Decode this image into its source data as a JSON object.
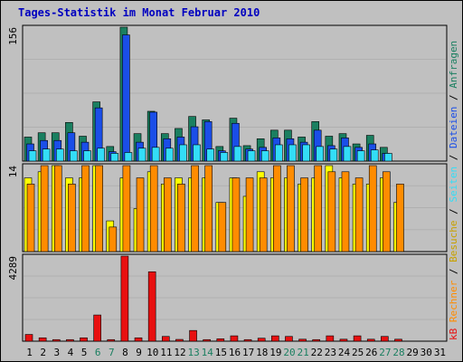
{
  "chart_data": {
    "type": "bar",
    "title": "Tages-Statistik im Monat Februar 2010",
    "x": [
      "1",
      "2",
      "3",
      "4",
      "5",
      "6",
      "7",
      "8",
      "9",
      "10",
      "11",
      "12",
      "13",
      "14",
      "15",
      "16",
      "17",
      "18",
      "19",
      "20",
      "21",
      "22",
      "23",
      "24",
      "25",
      "26",
      "27",
      "28",
      "29",
      "30",
      "31"
    ],
    "weekend_days": [
      "6",
      "7",
      "13",
      "14",
      "20",
      "21",
      "27",
      "28"
    ],
    "panels": [
      {
        "id": "top",
        "ylabel_max": "156",
        "ymax": 156,
        "series": [
          {
            "name": "Anfragen",
            "color": "#1a7f60",
            "values": [
              28,
              33,
              33,
              45,
              29,
              69,
              17,
              156,
              32,
              58,
              32,
              38,
              52,
              48,
              17,
              50,
              18,
              26,
              36,
              36,
              28,
              46,
              29,
              32,
              20,
              30,
              16,
              null,
              null,
              null,
              null
            ]
          },
          {
            "name": "Dateien",
            "color": "#1a4ee8",
            "values": [
              20,
              24,
              24,
              33,
              22,
              62,
              11,
              147,
              22,
              57,
              26,
              28,
              40,
              46,
              12,
              44,
              14,
              16,
              27,
              26,
              22,
              36,
              18,
              27,
              16,
              20,
              9,
              null,
              null,
              null,
              null
            ]
          },
          {
            "name": "Seiten",
            "color": "#33ddf7",
            "values": [
              12,
              14,
              14,
              12,
              12,
              15,
              9,
              10,
              15,
              16,
              15,
              19,
              19,
              14,
              10,
              17,
              12,
              12,
              19,
              19,
              19,
              17,
              14,
              17,
              12,
              13,
              9,
              null,
              null,
              null,
              null
            ]
          }
        ]
      },
      {
        "id": "middle",
        "ylabel_max": "14",
        "ymax": 14,
        "series": [
          {
            "name": "Besuche",
            "color": "#ffff00",
            "values": [
              12,
              13,
              14,
              12,
              12,
              14,
              5,
              12,
              7,
              13,
              11,
              12,
              12,
              12,
              8,
              12,
              9,
              13,
              12,
              12,
              11,
              12,
              14,
              12,
              11,
              11,
              12,
              8,
              null,
              null,
              null
            ]
          },
          {
            "name": "Rechner",
            "color": "#ff8c00",
            "values": [
              11,
              14,
              14,
              11,
              14,
              14,
              4,
              14,
              12,
              14,
              12,
              11,
              14,
              14,
              8,
              12,
              12,
              12,
              14,
              14,
              12,
              14,
              13,
              13,
              12,
              14,
              13,
              11,
              null,
              null,
              null
            ]
          }
        ]
      },
      {
        "id": "bottom",
        "ylabel_max": "4289",
        "ymax": 4289,
        "series": [
          {
            "name": "kB",
            "color": "#e81010",
            "values": [
              340,
              170,
              80,
              80,
              170,
              1320,
              80,
              4289,
              170,
              3500,
              240,
              90,
              540,
              80,
              120,
              270,
              80,
              150,
              270,
              240,
              100,
              80,
              270,
              100,
              270,
              100,
              240,
              100,
              null,
              null,
              null
            ]
          }
        ]
      }
    ],
    "legend_right": [
      "Anfragen",
      "/",
      "Dateien",
      "/",
      "Seiten",
      "/",
      "Besuche",
      "/",
      "Rechner",
      "/",
      "kB"
    ],
    "legend_colors": {
      "Anfragen": "#1a7f60",
      "Dateien": "#1a4ee8",
      "Seiten": "#33ddf7",
      "Besuche": "#ffff00",
      "Rechner": "#ff8c00",
      "kB": "#e81010"
    }
  }
}
